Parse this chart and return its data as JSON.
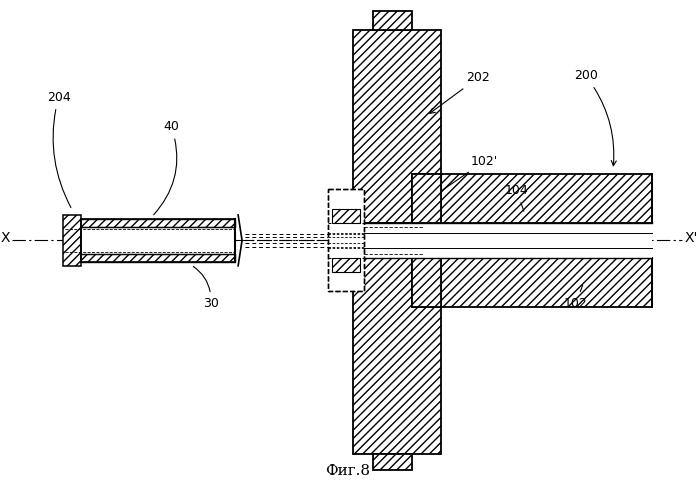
{
  "title": "Фиг.8",
  "bg_color": "#ffffff",
  "fig_w": 6.99,
  "fig_h": 4.84,
  "dpi": 100
}
